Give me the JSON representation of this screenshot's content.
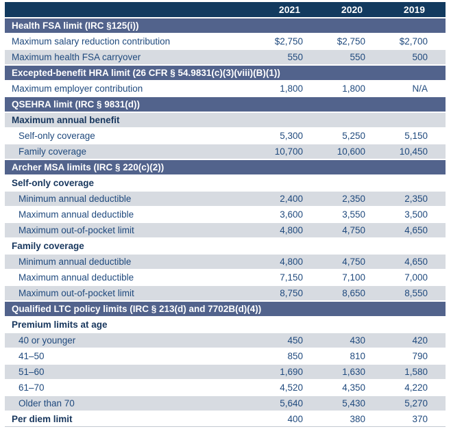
{
  "columns": [
    "2021",
    "2020",
    "2019"
  ],
  "rows": [
    {
      "type": "section",
      "label": "Health FSA limit (IRC §125(i))"
    },
    {
      "type": "data",
      "label": "Maximum salary reduction contribution",
      "values": [
        "$2,750",
        "$2,750",
        "$2,700"
      ]
    },
    {
      "type": "data",
      "label": "Maximum health FSA carryover",
      "values": [
        "550",
        "550",
        "500"
      ]
    },
    {
      "type": "section",
      "label": "Excepted-benefit HRA limit (26 CFR § 54.9831(c)(3)(viii)(B)(1))"
    },
    {
      "type": "data",
      "label": "Maximum employer contribution",
      "values": [
        "1,800",
        "1,800",
        "N/A"
      ]
    },
    {
      "type": "section",
      "label": "QSEHRA limit (IRC § 9831(d))"
    },
    {
      "type": "subheader",
      "label": "Maximum annual benefit"
    },
    {
      "type": "data",
      "label": "Self-only coverage",
      "values": [
        "5,300",
        "5,250",
        "5,150"
      ]
    },
    {
      "type": "data",
      "label": "Family coverage",
      "values": [
        "10,700",
        "10,600",
        "10,450"
      ]
    },
    {
      "type": "section",
      "label": "Archer MSA limits (IRC § 220(c)(2))"
    },
    {
      "type": "subheader",
      "label": "Self-only coverage"
    },
    {
      "type": "data",
      "label": "Minimum annual deductible",
      "values": [
        "2,400",
        "2,350",
        "2,350"
      ]
    },
    {
      "type": "data",
      "label": "Maximum annual deductible",
      "values": [
        "3,600",
        "3,550",
        "3,500"
      ]
    },
    {
      "type": "data",
      "label": "Maximum out-of-pocket limit",
      "values": [
        "4,800",
        "4,750",
        "4,650"
      ]
    },
    {
      "type": "subheader",
      "label": "Family coverage"
    },
    {
      "type": "data",
      "label": "Minimum annual deductible",
      "values": [
        "4,800",
        "4,750",
        "4,650"
      ]
    },
    {
      "type": "data",
      "label": "Maximum annual deductible",
      "values": [
        "7,150",
        "7,100",
        "7,000"
      ]
    },
    {
      "type": "data",
      "label": "Maximum out-of-pocket limit",
      "values": [
        "8,750",
        "8,650",
        "8,550"
      ]
    },
    {
      "type": "section",
      "label": "Qualified LTC policy limits (IRC § 213(d) and 7702B(d)(4))"
    },
    {
      "type": "subheader",
      "label": "Premium limits at age"
    },
    {
      "type": "data",
      "label": "40 or younger",
      "values": [
        "450",
        "430",
        "420"
      ]
    },
    {
      "type": "data",
      "label": "41–50",
      "values": [
        "850",
        "810",
        "790"
      ]
    },
    {
      "type": "data",
      "label": "51–60",
      "values": [
        "1,690",
        "1,630",
        "1,580"
      ]
    },
    {
      "type": "data",
      "label": "61–70",
      "values": [
        "4,520",
        "4,350",
        "4,220"
      ]
    },
    {
      "type": "data",
      "label": "Older than 70",
      "values": [
        "5,640",
        "5,430",
        "5,270"
      ]
    },
    {
      "type": "boldrow",
      "label": "Per diem limit",
      "values": [
        "400",
        "380",
        "370"
      ]
    }
  ],
  "colors": {
    "year_header_bg": "#123A5F",
    "section_bg": "#52638C",
    "shade_row_bg": "#D7DBE1",
    "row_text": "#1F497D",
    "bold_text": "#17365D"
  }
}
